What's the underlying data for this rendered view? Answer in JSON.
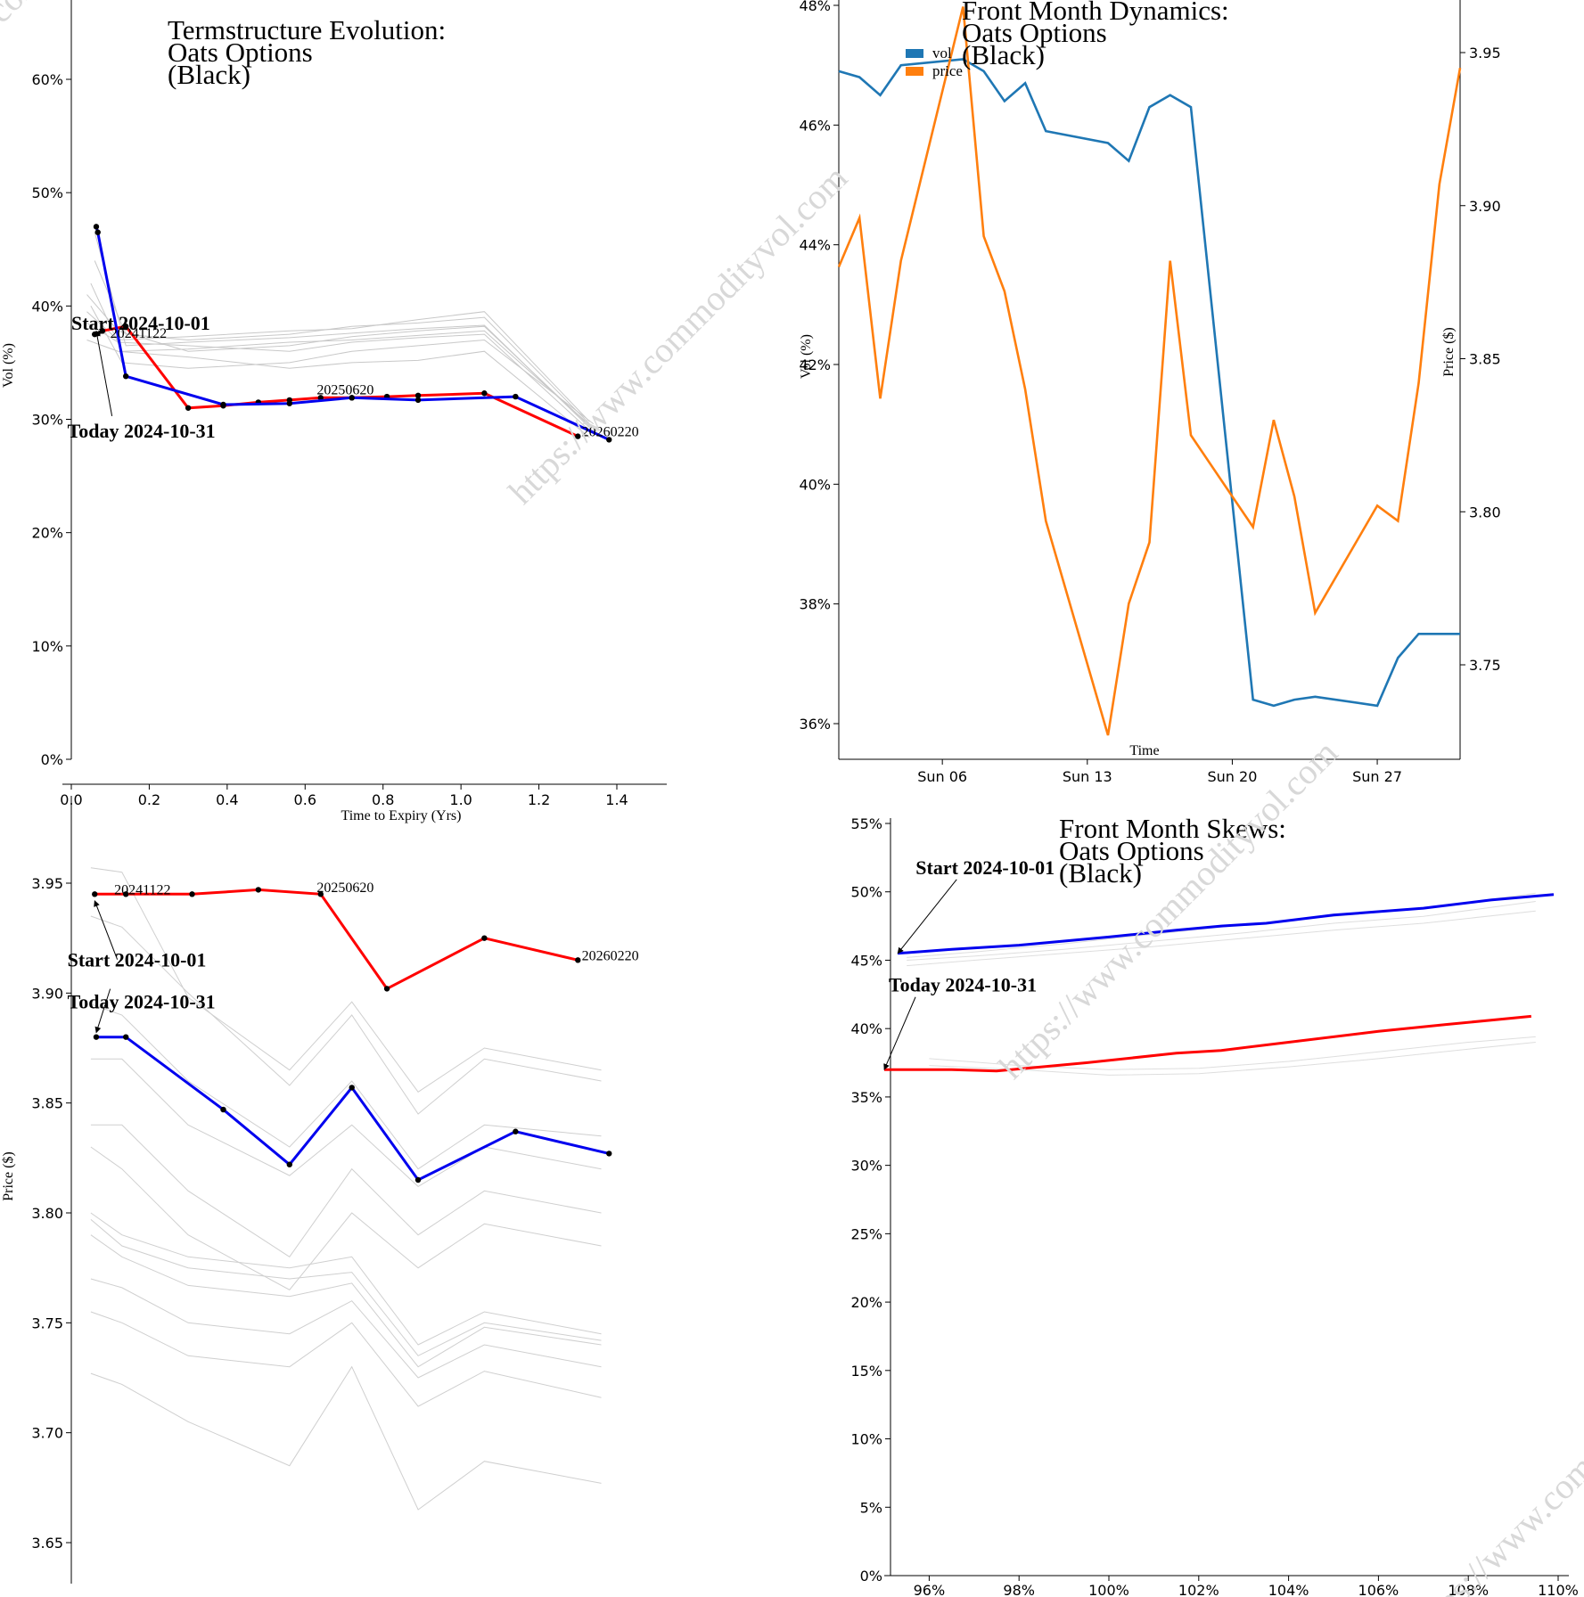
{
  "watermark": "https://www.commodityvol.com",
  "chart_data": [
    {
      "id": "term",
      "type": "line",
      "title": [
        "Termstructure Evolution:",
        "Oats Options",
        "(Black)"
      ],
      "xlabel": "Time to Expiry (Yrs)",
      "ylabel": "Vol (%)",
      "xlim": [
        0,
        1.52
      ],
      "ylim": [
        0,
        67
      ],
      "xticks": [
        "0.0",
        "0.2",
        "0.4",
        "0.6",
        "0.8",
        "1.0",
        "1.2",
        "1.4"
      ],
      "yticks": [
        "0%",
        "10%",
        "20%",
        "30%",
        "40%",
        "50%",
        "60%"
      ],
      "series": [
        {
          "color": "#ff0000",
          "x": [
            0.06,
            0.08,
            0.14,
            0.3,
            0.39,
            0.48,
            0.56,
            0.64,
            0.72,
            0.81,
            0.89,
            1.06,
            1.3
          ],
          "y": [
            37.5,
            37.8,
            38.2,
            31.0,
            31.2,
            31.5,
            31.7,
            31.9,
            31.9,
            32.0,
            32.1,
            32.3,
            28.5
          ]
        },
        {
          "color": "#0000ee",
          "x": [
            0.064,
            0.068,
            0.14,
            0.39,
            0.56,
            0.72,
            0.89,
            1.14,
            1.38
          ],
          "y": [
            47.0,
            46.5,
            33.8,
            31.3,
            31.4,
            31.9,
            31.7,
            32.0,
            28.2
          ]
        }
      ],
      "history": [
        {
          "x": [
            0.06,
            0.14,
            0.3,
            0.56,
            0.72,
            0.89,
            1.06,
            1.35
          ],
          "y": [
            46.5,
            36.5,
            36.8,
            37.2,
            37.6,
            38.0,
            38.3,
            28.6
          ]
        },
        {
          "x": [
            0.06,
            0.14,
            0.3,
            0.56,
            0.72,
            0.89,
            1.06,
            1.35
          ],
          "y": [
            44.0,
            37.5,
            37.0,
            37.5,
            38.2,
            38.5,
            39.0,
            28.9
          ]
        },
        {
          "x": [
            0.05,
            0.13,
            0.3,
            0.56,
            0.72,
            0.89,
            1.06,
            1.34
          ],
          "y": [
            42.0,
            36.0,
            36.2,
            36.8,
            37.0,
            37.4,
            37.8,
            29.2
          ]
        },
        {
          "x": [
            0.05,
            0.13,
            0.3,
            0.56,
            0.72,
            0.89,
            1.06,
            1.34
          ],
          "y": [
            40.0,
            35.0,
            34.5,
            35.0,
            36.0,
            36.5,
            37.0,
            29.6
          ]
        },
        {
          "x": [
            0.04,
            0.12,
            0.3,
            0.56,
            0.72,
            0.89,
            1.06,
            1.33
          ],
          "y": [
            38.5,
            36.8,
            36.5,
            36.0,
            36.8,
            37.2,
            37.5,
            29.0
          ]
        },
        {
          "x": [
            0.04,
            0.12,
            0.3,
            0.56,
            0.72,
            0.89,
            1.06,
            1.33
          ],
          "y": [
            39.5,
            37.0,
            37.3,
            37.8,
            38.0,
            38.8,
            39.5,
            29.8
          ]
        },
        {
          "x": [
            0.04,
            0.12,
            0.3,
            0.56,
            0.72,
            0.89,
            1.06,
            1.33
          ],
          "y": [
            37.0,
            36.0,
            35.5,
            34.5,
            35.0,
            35.2,
            36.0,
            28.4
          ]
        },
        {
          "x": [
            0.04,
            0.12,
            0.3,
            0.56,
            0.72,
            0.89,
            1.06,
            1.33
          ],
          "y": [
            41.0,
            37.8,
            36.0,
            36.5,
            37.3,
            37.8,
            38.2,
            29.4
          ]
        }
      ],
      "contract_labels": [
        {
          "text": "20241122",
          "x": 0.1,
          "y": 37.2
        },
        {
          "text": "20250620",
          "x": 0.63,
          "y": 32.2
        },
        {
          "text": "20260220",
          "x": 1.31,
          "y": 28.5
        }
      ],
      "annotations": [
        {
          "text": "Start 2024-10-01",
          "x": 0.0,
          "y": 37.9,
          "ax": 0.06,
          "ay": 37.6
        },
        {
          "text": "Today 2024-10-31",
          "x": -0.01,
          "y": 28.4,
          "ax": 0.064,
          "ay": 37.8
        }
      ]
    },
    {
      "id": "dynamics",
      "type": "line",
      "title": [
        "Front Month Dynamics:",
        "Oats Options",
        "(Black)"
      ],
      "xlabel": "Time",
      "ylabel": "Vol (%)",
      "y2label": "Price ($)",
      "xlim": [
        0,
        30
      ],
      "ylim": [
        35.3,
        48.0
      ],
      "y2lim": [
        3.717,
        3.967
      ],
      "xticks": [
        {
          "label": "Sun 06",
          "x": 5
        },
        {
          "label": "Sun 13",
          "x": 12
        },
        {
          "label": "Sun 20",
          "x": 19
        },
        {
          "label": "Sun 27",
          "x": 26
        }
      ],
      "yticks": [
        "36%",
        "38%",
        "40%",
        "42%",
        "44%",
        "46%",
        "48%"
      ],
      "y2ticks": [
        "3.75",
        "3.80",
        "3.85",
        "3.90",
        "3.95"
      ],
      "legend": {
        "position": "top-left",
        "items": [
          {
            "label": "vol",
            "color": "#1f77b4"
          },
          {
            "label": "price",
            "color": "#ff7f0e"
          }
        ]
      },
      "series": [
        {
          "name": "vol",
          "color": "#1f77b4",
          "x": [
            0,
            1,
            2,
            3,
            6,
            7,
            8,
            9,
            10,
            13,
            14,
            15,
            16,
            17,
            20,
            21,
            22,
            23,
            26,
            27,
            28,
            29,
            30
          ],
          "y": [
            46.9,
            46.8,
            46.5,
            47.0,
            47.1,
            46.9,
            46.4,
            46.7,
            45.9,
            45.7,
            45.4,
            46.3,
            46.5,
            46.3,
            36.4,
            36.3,
            36.4,
            36.45,
            36.3,
            37.1,
            37.5,
            37.5,
            37.5
          ]
        },
        {
          "name": "price",
          "color": "#ff7f0e",
          "x": [
            0,
            1,
            2,
            3,
            6,
            7,
            8,
            9,
            10,
            13,
            14,
            15,
            16,
            17,
            20,
            21,
            22,
            23,
            26,
            27,
            28,
            29,
            30
          ],
          "y": [
            3.88,
            3.896,
            3.837,
            3.882,
            3.965,
            3.89,
            3.872,
            3.84,
            3.797,
            3.727,
            3.77,
            3.79,
            3.882,
            3.825,
            3.795,
            3.83,
            3.805,
            3.767,
            3.802,
            3.797,
            3.842,
            3.907,
            3.945
          ]
        }
      ]
    },
    {
      "id": "price_term",
      "type": "line",
      "xlabel": "",
      "ylabel": "Price ($)",
      "xlim": [
        0,
        1.52
      ],
      "ylim": [
        3.642,
        3.975
      ],
      "yticks": [
        "3.65",
        "3.70",
        "3.75",
        "3.80",
        "3.85",
        "3.90",
        "3.95"
      ],
      "series": [
        {
          "color": "#ff0000",
          "x": [
            0.06,
            0.14,
            0.31,
            0.48,
            0.64,
            0.81,
            1.06,
            1.3
          ],
          "y": [
            3.945,
            3.945,
            3.945,
            3.947,
            3.945,
            3.902,
            3.925,
            3.915
          ]
        },
        {
          "color": "#0000ee",
          "x": [
            0.064,
            0.14,
            0.39,
            0.56,
            0.72,
            0.89,
            1.14,
            1.38
          ],
          "y": [
            3.88,
            3.88,
            3.847,
            3.822,
            3.857,
            3.815,
            3.837,
            3.827
          ]
        }
      ],
      "history": [
        {
          "x": [
            0.05,
            0.13,
            0.3,
            0.56,
            0.72,
            0.89,
            1.06,
            1.36
          ],
          "y": [
            3.957,
            3.955,
            3.898,
            3.865,
            3.896,
            3.855,
            3.875,
            3.865
          ]
        },
        {
          "x": [
            0.05,
            0.13,
            0.3,
            0.56,
            0.72,
            0.89,
            1.06,
            1.36
          ],
          "y": [
            3.935,
            3.93,
            3.9,
            3.858,
            3.89,
            3.845,
            3.87,
            3.86
          ]
        },
        {
          "x": [
            0.05,
            0.13,
            0.3,
            0.56,
            0.72,
            0.89,
            1.06,
            1.36
          ],
          "y": [
            3.895,
            3.89,
            3.86,
            3.83,
            3.86,
            3.82,
            3.84,
            3.835
          ]
        },
        {
          "x": [
            0.05,
            0.13,
            0.3,
            0.56,
            0.72,
            0.89,
            1.06,
            1.36
          ],
          "y": [
            3.87,
            3.87,
            3.84,
            3.817,
            3.84,
            3.812,
            3.83,
            3.82
          ]
        },
        {
          "x": [
            0.05,
            0.13,
            0.3,
            0.56,
            0.72,
            0.89,
            1.06,
            1.36
          ],
          "y": [
            3.84,
            3.84,
            3.81,
            3.78,
            3.82,
            3.79,
            3.81,
            3.8
          ]
        },
        {
          "x": [
            0.05,
            0.13,
            0.3,
            0.56,
            0.72,
            0.89,
            1.06,
            1.36
          ],
          "y": [
            3.83,
            3.82,
            3.79,
            3.765,
            3.8,
            3.775,
            3.795,
            3.785
          ]
        },
        {
          "x": [
            0.05,
            0.13,
            0.3,
            0.56,
            0.72,
            0.89,
            1.06,
            1.36
          ],
          "y": [
            3.8,
            3.79,
            3.78,
            3.775,
            3.78,
            3.74,
            3.755,
            3.745
          ]
        },
        {
          "x": [
            0.05,
            0.13,
            0.3,
            0.56,
            0.72,
            0.89,
            1.06,
            1.36
          ],
          "y": [
            3.797,
            3.785,
            3.775,
            3.77,
            3.773,
            3.735,
            3.75,
            3.742
          ]
        },
        {
          "x": [
            0.05,
            0.13,
            0.3,
            0.56,
            0.72,
            0.89,
            1.06,
            1.36
          ],
          "y": [
            3.79,
            3.78,
            3.767,
            3.762,
            3.768,
            3.73,
            3.748,
            3.74
          ]
        },
        {
          "x": [
            0.05,
            0.13,
            0.3,
            0.56,
            0.72,
            0.89,
            1.06,
            1.36
          ],
          "y": [
            3.77,
            3.766,
            3.75,
            3.745,
            3.76,
            3.725,
            3.74,
            3.73
          ]
        },
        {
          "x": [
            0.05,
            0.13,
            0.3,
            0.56,
            0.72,
            0.89,
            1.06,
            1.36
          ],
          "y": [
            3.755,
            3.75,
            3.735,
            3.73,
            3.75,
            3.712,
            3.728,
            3.716
          ]
        },
        {
          "x": [
            0.05,
            0.13,
            0.3,
            0.56,
            0.72,
            0.89,
            1.06,
            1.36
          ],
          "y": [
            3.727,
            3.722,
            3.705,
            3.685,
            3.73,
            3.665,
            3.687,
            3.677
          ]
        }
      ],
      "contract_labels": [
        {
          "text": "20241122",
          "x": 0.11,
          "y": 3.945
        },
        {
          "text": "20250620",
          "x": 0.63,
          "y": 3.946
        },
        {
          "text": "20260220",
          "x": 1.31,
          "y": 3.915
        }
      ],
      "annotations": [
        {
          "text": "Start 2024-10-01",
          "x": -0.01,
          "y": 3.912,
          "ax": 0.06,
          "ay": 3.942
        },
        {
          "text": "Today 2024-10-31",
          "x": -0.01,
          "y": 3.893,
          "ax": 0.064,
          "ay": 3.882
        }
      ]
    },
    {
      "id": "skews",
      "type": "line",
      "title": [
        "Front Month Skews:",
        "Oats Options",
        "(Black)"
      ],
      "xlabel": "",
      "ylabel": "",
      "xlim": [
        95.0,
        110.0
      ],
      "ylim": [
        0,
        55
      ],
      "xticks": [
        "96%",
        "98%",
        "100%",
        "102%",
        "104%",
        "106%",
        "108%",
        "110%"
      ],
      "yticks": [
        "0%",
        "5%",
        "10%",
        "15%",
        "20%",
        "25%",
        "30%",
        "35%",
        "40%",
        "45%",
        "50%",
        "55%"
      ],
      "series": [
        {
          "color": "#0000ee",
          "x": [
            95.3,
            96.5,
            98.0,
            100.0,
            101.5,
            102.5,
            103.5,
            105.0,
            107.0,
            108.5,
            109.9
          ],
          "y": [
            45.5,
            45.8,
            46.1,
            46.7,
            47.2,
            47.5,
            47.7,
            48.3,
            48.8,
            49.4,
            49.8
          ]
        },
        {
          "color": "#ff0000",
          "x": [
            95.0,
            96.5,
            97.5,
            99.5,
            101.5,
            102.5,
            104.0,
            106.0,
            107.5,
            109.4
          ],
          "y": [
            37.0,
            37.0,
            36.9,
            37.5,
            38.2,
            38.4,
            39.0,
            39.8,
            40.3,
            40.9
          ]
        }
      ],
      "history": [
        {
          "x": [
            95.5,
            97.0,
            99.0,
            101.0,
            103.0,
            105.0,
            107.0,
            109.5
          ],
          "y": [
            45.0,
            45.3,
            45.8,
            46.4,
            47.0,
            47.7,
            48.2,
            49.3
          ]
        },
        {
          "x": [
            95.5,
            97.0,
            99.0,
            101.0,
            103.0,
            105.0,
            107.0,
            109.5
          ],
          "y": [
            44.6,
            45.0,
            45.5,
            46.0,
            46.6,
            47.2,
            47.7,
            48.6
          ]
        },
        {
          "x": [
            95.5,
            97.0,
            99.0,
            101.0,
            103.0,
            105.0,
            107.0,
            109.5
          ],
          "y": [
            45.2,
            45.6,
            46.2,
            46.9,
            47.6,
            48.2,
            48.8,
            49.9
          ]
        },
        {
          "x": [
            96.0,
            98.0,
            100.0,
            102.0,
            104.0,
            106.0,
            108.0,
            109.5
          ],
          "y": [
            37.3,
            37.0,
            36.6,
            36.7,
            37.2,
            37.8,
            38.5,
            39.0
          ]
        },
        {
          "x": [
            96.0,
            98.0,
            100.0,
            102.0,
            104.0,
            106.0,
            108.0,
            109.5
          ],
          "y": [
            37.8,
            37.3,
            37.0,
            37.1,
            37.6,
            38.3,
            39.0,
            39.4
          ]
        }
      ],
      "annotations": [
        {
          "text": "Start 2024-10-01",
          "x": 95.7,
          "y": 51.3,
          "ax": 95.3,
          "ay": 45.5
        },
        {
          "text": "Today 2024-10-31",
          "x": 95.1,
          "y": 42.7,
          "ax": 95.0,
          "ay": 37.0
        }
      ]
    }
  ]
}
